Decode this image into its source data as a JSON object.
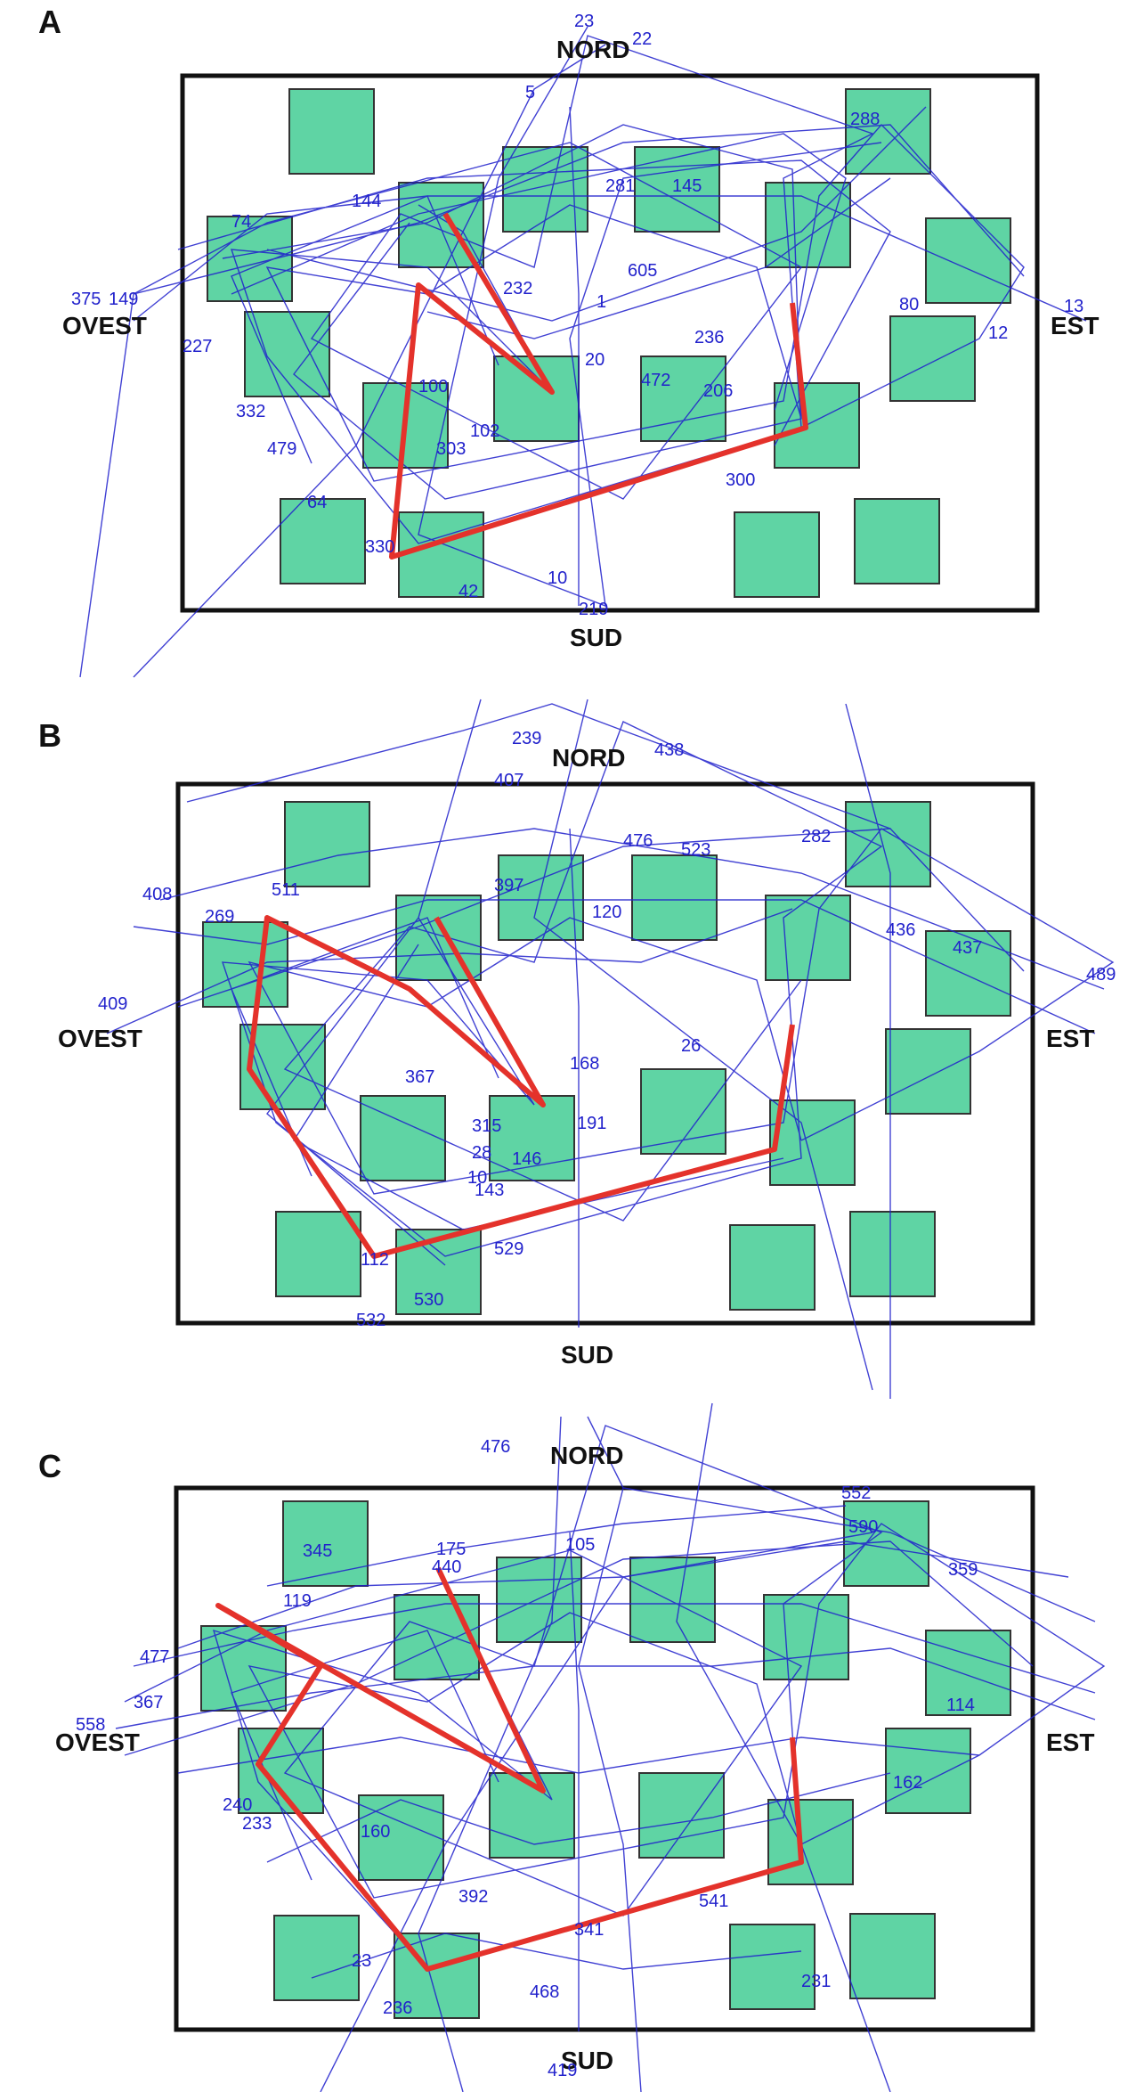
{
  "panels": [
    {
      "label": "A",
      "directions": {
        "north": "NORD",
        "south": "SUD",
        "west": "OVEST",
        "east": "EST"
      },
      "numbers": [
        "23",
        "22",
        "5",
        "288",
        "144",
        "74",
        "281",
        "145",
        "605",
        "232",
        "1",
        "20",
        "13",
        "12",
        "80",
        "375",
        "149",
        "227",
        "472",
        "206",
        "236",
        "100",
        "303",
        "102",
        "300",
        "332",
        "479",
        "64",
        "330",
        "42",
        "10",
        "219"
      ]
    },
    {
      "label": "B",
      "directions": {
        "north": "NORD",
        "south": "SUD",
        "west": "OVEST",
        "east": "EST"
      },
      "numbers": [
        "239",
        "407",
        "438",
        "408",
        "511",
        "476",
        "523",
        "282",
        "269",
        "397",
        "409",
        "436",
        "437",
        "489",
        "168",
        "26",
        "367",
        "191",
        "10",
        "146",
        "143",
        "529",
        "112",
        "532",
        "530",
        "28",
        "315",
        "120"
      ]
    },
    {
      "label": "C",
      "directions": {
        "north": "NORD",
        "south": "SUD",
        "west": "OVEST",
        "east": "EST"
      },
      "numbers": [
        "476",
        "552",
        "345",
        "175",
        "440",
        "105",
        "119",
        "359",
        "477",
        "367",
        "558",
        "233",
        "160",
        "240",
        "392",
        "541",
        "341",
        "468",
        "23",
        "231",
        "419",
        "236",
        "162",
        "114",
        "590"
      ]
    }
  ],
  "colors": {
    "square": "#5fd4a4",
    "path": "#e4322b",
    "trace": "#2020cc",
    "frame": "#111111"
  }
}
